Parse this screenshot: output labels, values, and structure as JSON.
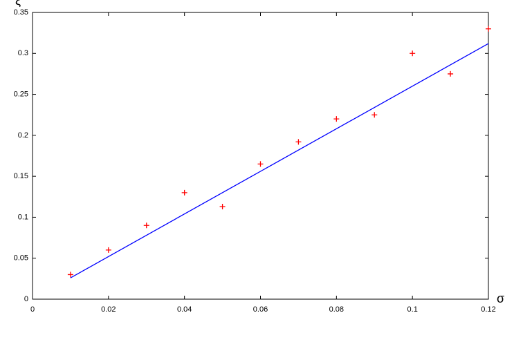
{
  "chart_data": {
    "type": "scatter",
    "xlabel": "σ",
    "ylabel": "ξ",
    "xlim": [
      0,
      0.12
    ],
    "xticks": [
      0,
      0.02,
      0.04,
      0.06,
      0.08,
      0.1,
      0.12
    ],
    "ylim": [
      0,
      0.35
    ],
    "yticks": [
      0,
      0.05,
      0.1,
      0.15,
      0.2,
      0.25,
      0.3,
      0.35
    ],
    "grid": false,
    "series": [
      {
        "marker": "+",
        "color": "#ff0000",
        "x": [
          0.01,
          0.02,
          0.03,
          0.04,
          0.05,
          0.06,
          0.07,
          0.08,
          0.09,
          0.1,
          0.11,
          0.12
        ],
        "values": [
          0.03,
          0.06,
          0.09,
          0.13,
          0.113,
          0.165,
          0.192,
          0.22,
          0.225,
          0.3,
          0.275,
          0.33
        ]
      },
      {
        "marker": "line",
        "color": "#0000ff",
        "x": [
          0.01,
          0.12
        ],
        "values": [
          0.026,
          0.312
        ]
      }
    ]
  }
}
